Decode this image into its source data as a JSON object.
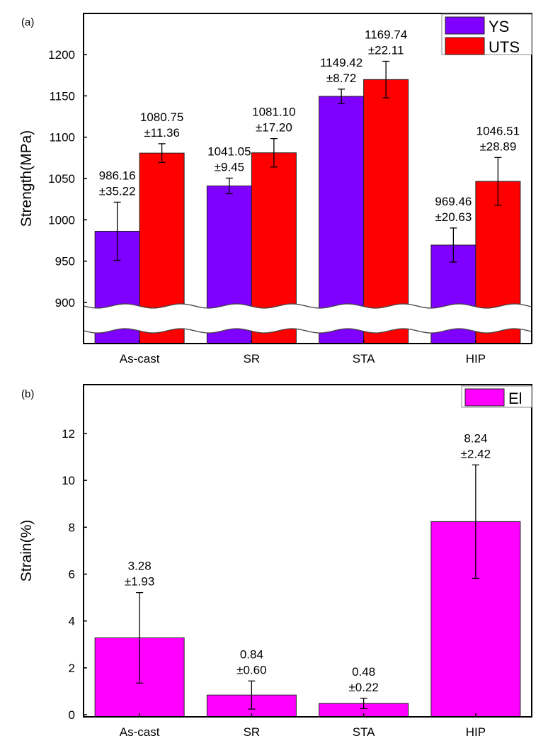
{
  "chart_data": [
    {
      "type": "bar",
      "panel_label": "(a)",
      "categories": [
        "As-cast",
        "SR",
        "STA",
        "HIP"
      ],
      "ylabel": "Strength(MPa)",
      "ylim": [
        855,
        1240
      ],
      "yticks": [
        900,
        950,
        1000,
        1050,
        1100,
        1150,
        1200
      ],
      "axis_break": true,
      "legend": "top-right",
      "series": [
        {
          "name": "YS",
          "color": "#7f00ff",
          "values": [
            986.16,
            1041.05,
            1149.42,
            969.46
          ],
          "errors": [
            35.22,
            9.45,
            8.72,
            20.63
          ],
          "labels": [
            "986.16",
            "1041.05",
            "1149.42",
            "969.46"
          ],
          "error_labels": [
            "±35.22",
            "±9.45",
            "±8.72",
            "±20.63"
          ]
        },
        {
          "name": "UTS",
          "color": "#ff0000",
          "values": [
            1080.75,
            1081.1,
            1169.74,
            1046.51
          ],
          "errors": [
            11.36,
            17.2,
            22.11,
            28.89
          ],
          "labels": [
            "1080.75",
            "1081.10",
            "1169.74",
            "1046.51"
          ],
          "error_labels": [
            "±11.36",
            "±17.20",
            "±22.11",
            "±28.89"
          ]
        }
      ]
    },
    {
      "type": "bar",
      "panel_label": "(b)",
      "categories": [
        "As-cast",
        "SR",
        "STA",
        "HIP"
      ],
      "ylabel": "Strain(%)",
      "ylim": [
        0,
        13
      ],
      "yticks": [
        0,
        2,
        4,
        6,
        8,
        10,
        12
      ],
      "legend": "top-right",
      "series": [
        {
          "name": "El",
          "color": "#ff00ff",
          "values": [
            3.28,
            0.84,
            0.48,
            8.24
          ],
          "errors": [
            1.93,
            0.6,
            0.22,
            2.42
          ],
          "labels": [
            "3.28",
            "0.84",
            "0.48",
            "8.24"
          ],
          "error_labels": [
            "±1.93",
            "±0.60",
            "±0.22",
            "±2.42"
          ]
        }
      ]
    }
  ]
}
